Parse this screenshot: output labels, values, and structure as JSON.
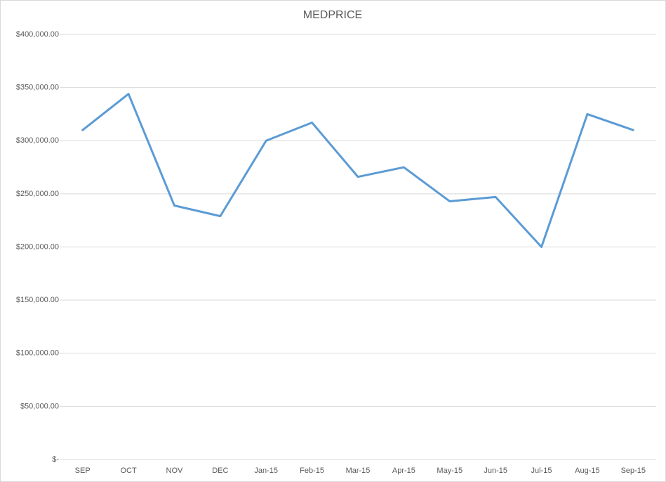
{
  "chart_data": {
    "type": "line",
    "title": "MEDPRICE",
    "categories": [
      "SEP",
      "OCT",
      "NOV",
      "DEC",
      "Jan-15",
      "Feb-15",
      "Mar-15",
      "Apr-15",
      "May-15",
      "Jun-15",
      "Jul-15",
      "Aug-15",
      "Sep-15"
    ],
    "series": [
      {
        "name": "MEDPRICE",
        "color": "#5b9bd5",
        "values": [
          310000,
          344000,
          239000,
          229000,
          300000,
          317000,
          266000,
          275000,
          243000,
          247000,
          200000,
          325000,
          310000
        ]
      }
    ],
    "ylim": [
      0,
      400000
    ],
    "yticks": [
      {
        "value": 0,
        "label": "$-"
      },
      {
        "value": 50000,
        "label": "$50,000.00"
      },
      {
        "value": 100000,
        "label": "$100,000.00"
      },
      {
        "value": 150000,
        "label": "$150,000.00"
      },
      {
        "value": 200000,
        "label": "$200,000.00"
      },
      {
        "value": 250000,
        "label": "$250,000.00"
      },
      {
        "value": 300000,
        "label": "$300,000.00"
      },
      {
        "value": 350000,
        "label": "$350,000.00"
      },
      {
        "value": 400000,
        "label": "$400,000.00"
      }
    ],
    "grid": true
  }
}
